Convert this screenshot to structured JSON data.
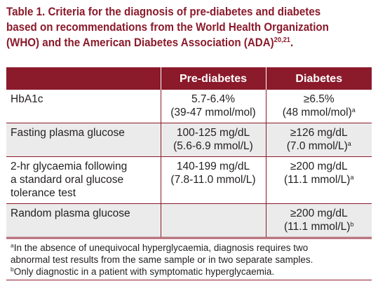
{
  "title": {
    "line1": "Table 1. Criteria for the diagnosis of pre-diabetes and diabetes",
    "line2": "based on recommendations from the World Health Organization",
    "line3": "(WHO) and the American Diabetes Association (ADA)",
    "ref": "20,21",
    "end": "."
  },
  "table": {
    "headers": [
      "",
      "Pre-diabetes",
      "Diabetes"
    ],
    "rows": [
      {
        "label": [
          "HbA1c"
        ],
        "pre": [
          "5.7-6.4%",
          "(39-47 mmol/mol)"
        ],
        "diab": [
          "≥6.5%",
          "(48 mmol/mol)"
        ],
        "diab_note": "a"
      },
      {
        "label": [
          "Fasting plasma glucose"
        ],
        "pre": [
          "100-125 mg/dL",
          "(5.6-6.9 mmol/L)"
        ],
        "diab": [
          "≥126 mg/dL",
          "(7.0 mmol/L)"
        ],
        "diab_note": "a"
      },
      {
        "label": [
          "2-hr glycaemia following",
          "a standard oral glucose",
          "tolerance test"
        ],
        "pre": [
          "140-199 mg/dL",
          "(7.8-11.0 mmol/L)"
        ],
        "diab": [
          "≥200 mg/dL",
          "(11.1 mmol/L)"
        ],
        "diab_note": "a"
      },
      {
        "label": [
          "Random plasma glucose"
        ],
        "pre": [
          "",
          ""
        ],
        "diab": [
          "≥200 mg/dL",
          "(11.1 mmol/L)"
        ],
        "diab_note": "b"
      }
    ]
  },
  "footnotes": {
    "a_mark": "a",
    "a_line1": "In the absence of unequivocal hyperglycaemia, diagnosis requires two",
    "a_line2": "abnormal test results from the same sample or in two separate samples.",
    "b_mark": "b",
    "b_line1": "Only diagnostic in a patient with symptomatic hyperglycaemia."
  },
  "colors": {
    "accent": "#8b1a2b",
    "shade": "#ebebeb"
  }
}
